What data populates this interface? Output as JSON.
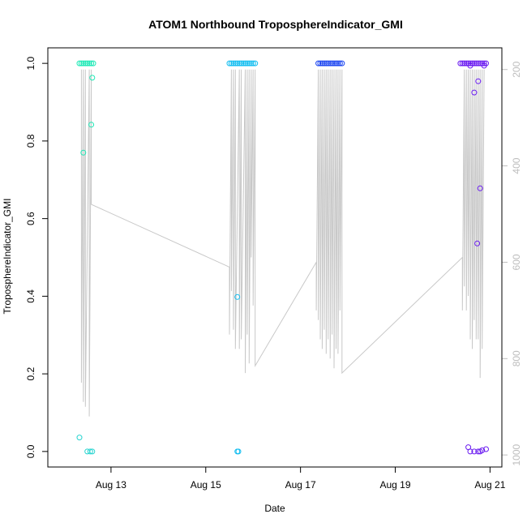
{
  "chart_data": {
    "type": "scatter",
    "title": "ATOM1 Northbound TroposphereIndicator_GMI",
    "xlabel": "Date",
    "ylabel": "TroposphereIndicator_GMI",
    "xlim": [
      "2016-08-11T16:00",
      "2016-08-21T06:00"
    ],
    "ylim": [
      -0.04,
      1.04
    ],
    "x_ticks": [
      {
        "label": "Aug 13",
        "date": "2016-08-13T00:00"
      },
      {
        "label": "Aug 15",
        "date": "2016-08-15T00:00"
      },
      {
        "label": "Aug 17",
        "date": "2016-08-17T00:00"
      },
      {
        "label": "Aug 19",
        "date": "2016-08-19T00:00"
      },
      {
        "label": "Aug 21",
        "date": "2016-08-21T00:00"
      }
    ],
    "y_ticks": [
      "0.0",
      "0.2",
      "0.4",
      "0.6",
      "0.8",
      "1.0"
    ],
    "right_axis": {
      "color": "#bdbdbd",
      "lim": [
        1025,
        155
      ],
      "ticks": [
        "200",
        "400",
        "600",
        "800",
        "1000"
      ]
    },
    "grid": false,
    "legend": "none",
    "series": [
      {
        "color": "#1de9b6",
        "points": [
          [
            "2016-08-12T08:00",
            1.0
          ],
          [
            "2016-08-12T09:00",
            1.0
          ],
          [
            "2016-08-12T10:00",
            1.0
          ],
          [
            "2016-08-12T11:00",
            1.0
          ],
          [
            "2016-08-12T12:00",
            1.0
          ],
          [
            "2016-08-12T13:00",
            1.0
          ],
          [
            "2016-08-12T14:00",
            1.0
          ],
          [
            "2016-08-12T15:00",
            1.0
          ],
          [
            "2016-08-12T14:30",
            0.963
          ],
          [
            "2016-08-12T14:00",
            0.842
          ],
          [
            "2016-08-12T10:00",
            0.77
          ]
        ]
      },
      {
        "color": "#26d4d0",
        "points": [
          [
            "2016-08-12T08:00",
            0.036
          ],
          [
            "2016-08-12T12:00",
            0.0
          ],
          [
            "2016-08-12T13:30",
            0.0
          ],
          [
            "2016-08-12T14:30",
            0.0
          ]
        ]
      },
      {
        "color": "#12bdf0",
        "points": [
          [
            "2016-08-15T12:00",
            1.0
          ],
          [
            "2016-08-15T13:00",
            1.0
          ],
          [
            "2016-08-15T14:00",
            1.0
          ],
          [
            "2016-08-15T15:00",
            1.0
          ],
          [
            "2016-08-15T16:00",
            1.0
          ],
          [
            "2016-08-15T17:00",
            1.0
          ],
          [
            "2016-08-15T18:00",
            1.0
          ],
          [
            "2016-08-15T19:00",
            1.0
          ],
          [
            "2016-08-15T20:00",
            1.0
          ],
          [
            "2016-08-15T21:00",
            1.0
          ],
          [
            "2016-08-15T22:00",
            1.0
          ],
          [
            "2016-08-15T23:00",
            1.0
          ],
          [
            "2016-08-16T00:00",
            1.0
          ],
          [
            "2016-08-16T01:00",
            1.0
          ],
          [
            "2016-08-15T16:00",
            0.398
          ],
          [
            "2016-08-15T16:00",
            0.0
          ],
          [
            "2016-08-15T16:30",
            0.0
          ]
        ]
      },
      {
        "color": "#1a44f0",
        "points": [
          [
            "2016-08-17T09:00",
            1.0
          ],
          [
            "2016-08-17T10:00",
            1.0
          ],
          [
            "2016-08-17T11:00",
            1.0
          ],
          [
            "2016-08-17T12:00",
            1.0
          ],
          [
            "2016-08-17T13:00",
            1.0
          ],
          [
            "2016-08-17T14:00",
            1.0
          ],
          [
            "2016-08-17T15:00",
            1.0
          ],
          [
            "2016-08-17T16:00",
            1.0
          ],
          [
            "2016-08-17T17:00",
            1.0
          ],
          [
            "2016-08-17T18:00",
            1.0
          ],
          [
            "2016-08-17T19:00",
            1.0
          ],
          [
            "2016-08-17T20:00",
            1.0
          ],
          [
            "2016-08-17T21:00",
            1.0
          ]
        ]
      },
      {
        "color": "#6a1bf0",
        "points": [
          [
            "2016-08-20T09:00",
            1.0
          ],
          [
            "2016-08-20T10:00",
            1.0
          ],
          [
            "2016-08-20T11:00",
            1.0
          ],
          [
            "2016-08-20T12:00",
            1.0
          ],
          [
            "2016-08-20T13:00",
            1.0
          ],
          [
            "2016-08-20T14:00",
            1.0
          ],
          [
            "2016-08-20T15:00",
            1.0
          ],
          [
            "2016-08-20T16:00",
            1.0
          ],
          [
            "2016-08-20T17:00",
            1.0
          ],
          [
            "2016-08-20T18:00",
            1.0
          ],
          [
            "2016-08-20T19:00",
            1.0
          ],
          [
            "2016-08-20T20:00",
            1.0
          ],
          [
            "2016-08-20T21:00",
            1.0
          ],
          [
            "2016-08-20T22:00",
            1.0
          ],
          [
            "2016-08-20T14:00",
            0.994
          ],
          [
            "2016-08-20T21:00",
            0.994
          ],
          [
            "2016-08-20T16:00",
            0.925
          ],
          [
            "2016-08-20T18:00",
            0.954
          ],
          [
            "2016-08-20T19:00",
            0.678
          ],
          [
            "2016-08-20T17:30",
            0.536
          ],
          [
            "2016-08-20T13:00",
            0.011
          ],
          [
            "2016-08-20T14:00",
            0.0
          ],
          [
            "2016-08-20T16:00",
            0.0
          ],
          [
            "2016-08-20T18:00",
            0.0
          ],
          [
            "2016-08-20T19:00",
            0.0
          ],
          [
            "2016-08-20T20:00",
            0.003
          ],
          [
            "2016-08-20T22:00",
            0.006
          ]
        ]
      }
    ],
    "trace": {
      "color": "#c8c8c8",
      "points": [
        [
          "2016-08-12T09:00",
          200
        ],
        [
          "2016-08-12T09:00",
          850
        ],
        [
          "2016-08-12T10:00",
          200
        ],
        [
          "2016-08-12T10:00",
          890
        ],
        [
          "2016-08-12T11:00",
          200
        ],
        [
          "2016-08-12T11:00",
          900
        ],
        [
          "2016-08-12T13:00",
          200
        ],
        [
          "2016-08-12T13:00",
          920
        ],
        [
          "2016-08-12T14:00",
          200
        ],
        [
          "2016-08-12T14:00",
          480
        ],
        [
          "2016-08-15T12:00",
          610
        ],
        [
          "2016-08-15T12:00",
          750
        ],
        [
          "2016-08-15T13:00",
          200
        ],
        [
          "2016-08-15T13:00",
          660
        ],
        [
          "2016-08-15T14:00",
          200
        ],
        [
          "2016-08-15T14:00",
          740
        ],
        [
          "2016-08-15T15:00",
          200
        ],
        [
          "2016-08-15T15:00",
          780
        ],
        [
          "2016-08-15T17:00",
          200
        ],
        [
          "2016-08-15T17:00",
          780
        ],
        [
          "2016-08-15T18:00",
          200
        ],
        [
          "2016-08-15T18:00",
          760
        ],
        [
          "2016-08-15T20:00",
          200
        ],
        [
          "2016-08-15T20:00",
          830
        ],
        [
          "2016-08-15T21:00",
          200
        ],
        [
          "2016-08-15T21:00",
          750
        ],
        [
          "2016-08-15T22:00",
          200
        ],
        [
          "2016-08-15T22:00",
          810
        ],
        [
          "2016-08-15T23:00",
          200
        ],
        [
          "2016-08-15T23:00",
          590
        ],
        [
          "2016-08-16T00:00",
          200
        ],
        [
          "2016-08-16T00:00",
          690
        ],
        [
          "2016-08-16T01:00",
          200
        ],
        [
          "2016-08-16T01:00",
          815
        ],
        [
          "2016-08-17T08:00",
          600
        ],
        [
          "2016-08-17T08:00",
          700
        ],
        [
          "2016-08-17T09:00",
          200
        ],
        [
          "2016-08-17T09:00",
          720
        ],
        [
          "2016-08-17T10:00",
          200
        ],
        [
          "2016-08-17T10:00",
          760
        ],
        [
          "2016-08-17T11:00",
          200
        ],
        [
          "2016-08-17T11:00",
          780
        ],
        [
          "2016-08-17T12:00",
          200
        ],
        [
          "2016-08-17T12:00",
          740
        ],
        [
          "2016-08-17T13:00",
          200
        ],
        [
          "2016-08-17T13:00",
          790
        ],
        [
          "2016-08-17T14:00",
          200
        ],
        [
          "2016-08-17T14:00",
          760
        ],
        [
          "2016-08-17T15:00",
          200
        ],
        [
          "2016-08-17T15:00",
          800
        ],
        [
          "2016-08-17T16:00",
          200
        ],
        [
          "2016-08-17T16:00",
          750
        ],
        [
          "2016-08-17T17:00",
          200
        ],
        [
          "2016-08-17T17:00",
          820
        ],
        [
          "2016-08-17T18:00",
          200
        ],
        [
          "2016-08-17T18:00",
          780
        ],
        [
          "2016-08-17T19:00",
          200
        ],
        [
          "2016-08-17T19:00",
          790
        ],
        [
          "2016-08-17T20:00",
          200
        ],
        [
          "2016-08-17T20:00",
          700
        ],
        [
          "2016-08-17T21:00",
          200
        ],
        [
          "2016-08-17T21:00",
          830
        ],
        [
          "2016-08-20T10:00",
          590
        ],
        [
          "2016-08-20T10:00",
          700
        ],
        [
          "2016-08-20T11:00",
          200
        ],
        [
          "2016-08-20T11:00",
          650
        ],
        [
          "2016-08-20T12:00",
          200
        ],
        [
          "2016-08-20T12:00",
          700
        ],
        [
          "2016-08-20T13:00",
          200
        ],
        [
          "2016-08-20T13:00",
          670
        ],
        [
          "2016-08-20T14:00",
          200
        ],
        [
          "2016-08-20T14:00",
          760
        ],
        [
          "2016-08-20T15:00",
          200
        ],
        [
          "2016-08-20T15:00",
          780
        ],
        [
          "2016-08-20T16:00",
          200
        ],
        [
          "2016-08-20T16:00",
          720
        ],
        [
          "2016-08-20T17:00",
          200
        ],
        [
          "2016-08-20T17:00",
          760
        ],
        [
          "2016-08-20T18:00",
          200
        ],
        [
          "2016-08-20T18:00",
          760
        ],
        [
          "2016-08-20T19:00",
          200
        ],
        [
          "2016-08-20T19:00",
          840
        ],
        [
          "2016-08-20T20:00",
          200
        ],
        [
          "2016-08-20T20:00",
          780
        ],
        [
          "2016-08-20T21:00",
          200
        ]
      ]
    }
  }
}
